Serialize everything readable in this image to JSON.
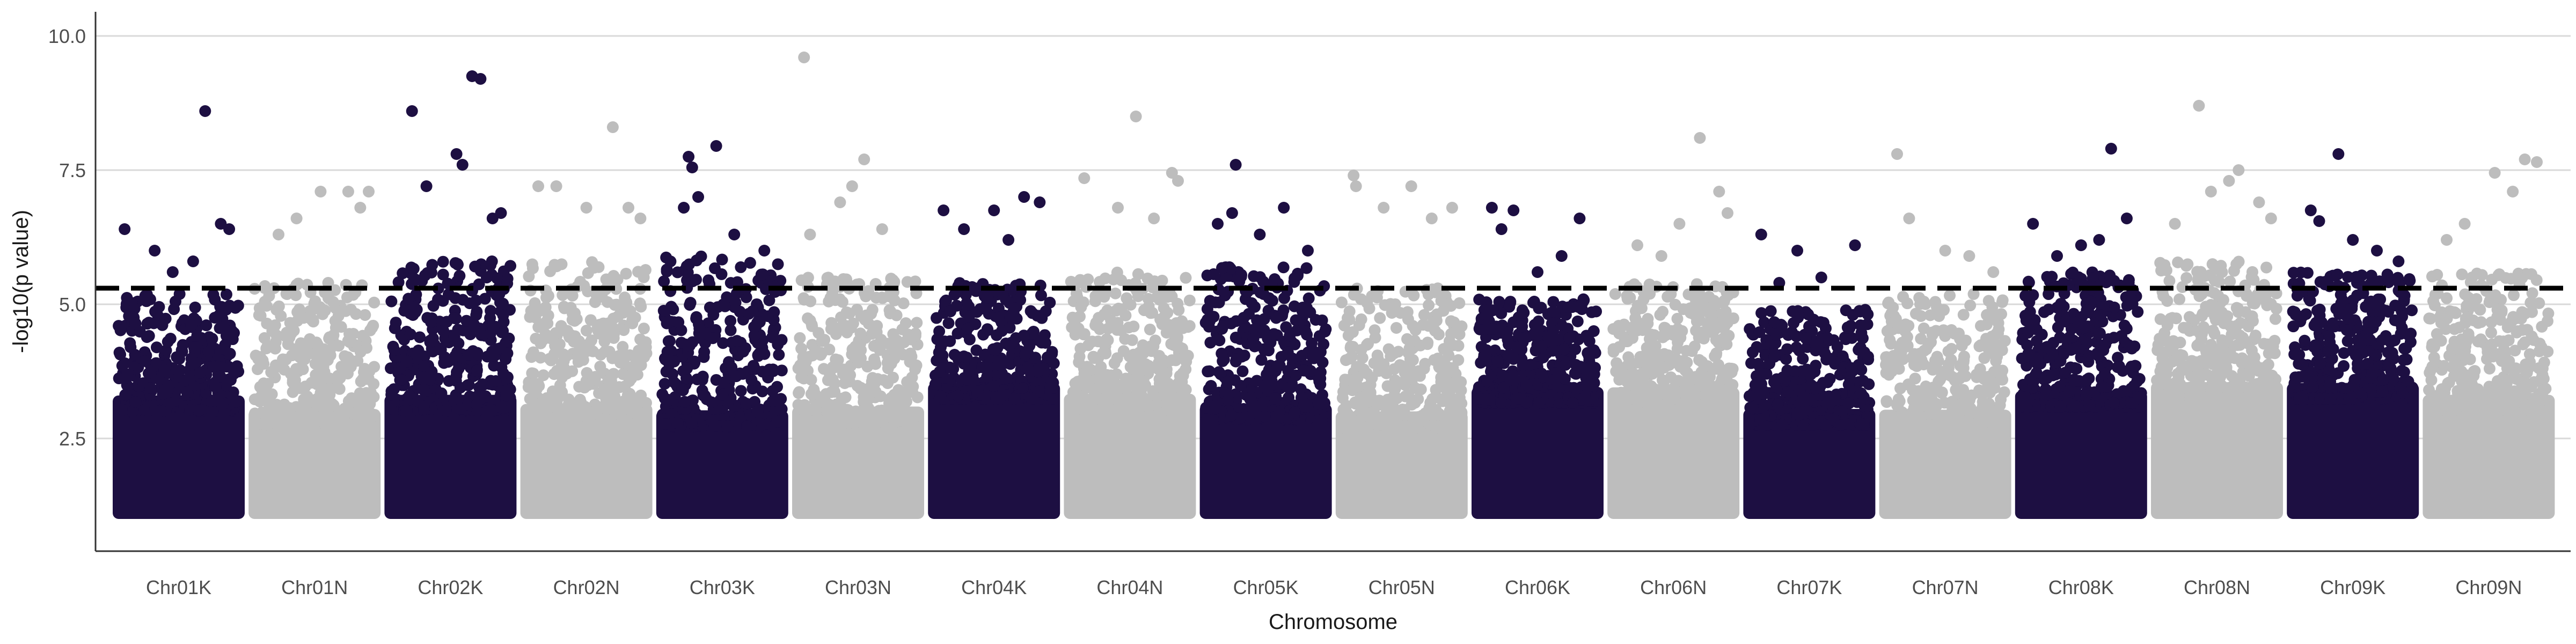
{
  "chart_data": {
    "type": "scatter",
    "title": "",
    "xlabel": "Chromosome",
    "ylabel": "-log10(p value)",
    "ylim": [
      0.4,
      10.45
    ],
    "yticks": [
      2.5,
      5.0,
      7.5,
      10.0
    ],
    "ytick_labels": [
      "2.5",
      "5.0",
      "7.5",
      "10.0"
    ],
    "grid": "horizontal major lines only",
    "legend": "none",
    "threshold": {
      "value": 5.3,
      "style": "dashed",
      "color": "#000000"
    },
    "colors": {
      "dark": "#1d0f42",
      "light": "#bdbdbd"
    },
    "categories": [
      "Chr01K",
      "Chr01N",
      "Chr02K",
      "Chr02N",
      "Chr03K",
      "Chr03N",
      "Chr04K",
      "Chr04N",
      "Chr05K",
      "Chr05N",
      "Chr06K",
      "Chr06N",
      "Chr07K",
      "Chr07N",
      "Chr08K",
      "Chr08N",
      "Chr09K",
      "Chr09N"
    ],
    "series": [
      {
        "chromosome": "Chr01K",
        "color": "dark",
        "dense_max": 5.2,
        "peaks": [
          [
            0.72,
            8.6
          ],
          [
            0.85,
            6.5
          ],
          [
            0.92,
            6.4
          ],
          [
            0.05,
            6.4
          ],
          [
            0.3,
            6.0
          ],
          [
            0.45,
            5.6
          ],
          [
            0.62,
            5.8
          ]
        ]
      },
      {
        "chromosome": "Chr01N",
        "color": "light",
        "dense_max": 5.4,
        "peaks": [
          [
            0.78,
            7.1
          ],
          [
            0.88,
            6.8
          ],
          [
            0.55,
            7.1
          ],
          [
            0.35,
            6.6
          ],
          [
            0.2,
            6.3
          ],
          [
            0.95,
            7.1
          ]
        ]
      },
      {
        "chromosome": "Chr02K",
        "color": "dark",
        "dense_max": 5.8,
        "peaks": [
          [
            0.68,
            9.25
          ],
          [
            0.75,
            9.2
          ],
          [
            0.18,
            8.6
          ],
          [
            0.55,
            7.8
          ],
          [
            0.3,
            7.2
          ],
          [
            0.85,
            6.6
          ],
          [
            0.6,
            7.6
          ],
          [
            0.92,
            6.7
          ]
        ]
      },
      {
        "chromosome": "Chr02N",
        "color": "light",
        "dense_max": 5.8,
        "peaks": [
          [
            0.72,
            8.3
          ],
          [
            0.25,
            7.2
          ],
          [
            0.1,
            7.2
          ],
          [
            0.5,
            6.8
          ],
          [
            0.85,
            6.8
          ],
          [
            0.95,
            6.6
          ]
        ]
      },
      {
        "chromosome": "Chr03K",
        "color": "dark",
        "dense_max": 5.9,
        "peaks": [
          [
            0.45,
            7.95
          ],
          [
            0.22,
            7.75
          ],
          [
            0.25,
            7.55
          ],
          [
            0.3,
            7.0
          ],
          [
            0.18,
            6.8
          ],
          [
            0.6,
            6.3
          ],
          [
            0.85,
            6.0
          ]
        ]
      },
      {
        "chromosome": "Chr03N",
        "color": "light",
        "dense_max": 5.5,
        "peaks": [
          [
            0.05,
            9.6
          ],
          [
            0.55,
            7.7
          ],
          [
            0.45,
            7.2
          ],
          [
            0.35,
            6.9
          ],
          [
            0.7,
            6.4
          ],
          [
            0.1,
            6.3
          ]
        ]
      },
      {
        "chromosome": "Chr04K",
        "color": "dark",
        "dense_max": 5.4,
        "peaks": [
          [
            0.75,
            7.0
          ],
          [
            0.88,
            6.9
          ],
          [
            0.08,
            6.75
          ],
          [
            0.5,
            6.75
          ],
          [
            0.25,
            6.4
          ],
          [
            0.62,
            6.2
          ]
        ]
      },
      {
        "chromosome": "Chr04N",
        "color": "light",
        "dense_max": 5.6,
        "peaks": [
          [
            0.55,
            8.5
          ],
          [
            0.85,
            7.45
          ],
          [
            0.12,
            7.35
          ],
          [
            0.9,
            7.3
          ],
          [
            0.4,
            6.8
          ],
          [
            0.7,
            6.6
          ]
        ]
      },
      {
        "chromosome": "Chr05K",
        "color": "dark",
        "dense_max": 5.7,
        "peaks": [
          [
            0.25,
            7.6
          ],
          [
            0.65,
            6.8
          ],
          [
            0.22,
            6.7
          ],
          [
            0.45,
            6.3
          ],
          [
            0.1,
            6.5
          ],
          [
            0.85,
            6.0
          ]
        ]
      },
      {
        "chromosome": "Chr05N",
        "color": "light",
        "dense_max": 5.3,
        "peaks": [
          [
            0.1,
            7.4
          ],
          [
            0.12,
            7.2
          ],
          [
            0.58,
            7.2
          ],
          [
            0.35,
            6.8
          ],
          [
            0.75,
            6.6
          ],
          [
            0.92,
            6.8
          ]
        ]
      },
      {
        "chromosome": "Chr06K",
        "color": "dark",
        "dense_max": 5.1,
        "peaks": [
          [
            0.12,
            6.8
          ],
          [
            0.3,
            6.75
          ],
          [
            0.85,
            6.6
          ],
          [
            0.2,
            6.4
          ],
          [
            0.7,
            5.9
          ],
          [
            0.5,
            5.6
          ]
        ]
      },
      {
        "chromosome": "Chr06N",
        "color": "light",
        "dense_max": 5.4,
        "peaks": [
          [
            0.72,
            8.1
          ],
          [
            0.88,
            7.1
          ],
          [
            0.55,
            6.5
          ],
          [
            0.2,
            6.1
          ],
          [
            0.95,
            6.7
          ],
          [
            0.4,
            5.9
          ]
        ]
      },
      {
        "chromosome": "Chr07K",
        "color": "dark",
        "dense_max": 4.9,
        "peaks": [
          [
            0.1,
            6.3
          ],
          [
            0.4,
            6.0
          ],
          [
            0.88,
            6.1
          ],
          [
            0.6,
            5.5
          ],
          [
            0.25,
            5.4
          ]
        ]
      },
      {
        "chromosome": "Chr07N",
        "color": "light",
        "dense_max": 5.2,
        "peaks": [
          [
            0.1,
            7.8
          ],
          [
            0.2,
            6.6
          ],
          [
            0.5,
            6.0
          ],
          [
            0.7,
            5.9
          ],
          [
            0.9,
            5.6
          ]
        ]
      },
      {
        "chromosome": "Chr08K",
        "color": "dark",
        "dense_max": 5.6,
        "peaks": [
          [
            0.75,
            7.9
          ],
          [
            0.88,
            6.6
          ],
          [
            0.1,
            6.5
          ],
          [
            0.5,
            6.1
          ],
          [
            0.3,
            5.9
          ],
          [
            0.65,
            6.2
          ]
        ]
      },
      {
        "chromosome": "Chr08N",
        "color": "light",
        "dense_max": 5.8,
        "peaks": [
          [
            0.35,
            8.7
          ],
          [
            0.68,
            7.5
          ],
          [
            0.6,
            7.3
          ],
          [
            0.45,
            7.1
          ],
          [
            0.85,
            6.9
          ],
          [
            0.15,
            6.5
          ],
          [
            0.95,
            6.6
          ]
        ]
      },
      {
        "chromosome": "Chr09K",
        "color": "dark",
        "dense_max": 5.6,
        "peaks": [
          [
            0.38,
            7.8
          ],
          [
            0.15,
            6.75
          ],
          [
            0.22,
            6.55
          ],
          [
            0.5,
            6.2
          ],
          [
            0.7,
            6.0
          ],
          [
            0.88,
            5.8
          ]
        ]
      },
      {
        "chromosome": "Chr09N",
        "color": "light",
        "dense_max": 5.6,
        "peaks": [
          [
            0.8,
            7.7
          ],
          [
            0.55,
            7.45
          ],
          [
            0.9,
            7.65
          ],
          [
            0.7,
            7.1
          ],
          [
            0.3,
            6.5
          ],
          [
            0.15,
            6.2
          ]
        ]
      }
    ]
  }
}
